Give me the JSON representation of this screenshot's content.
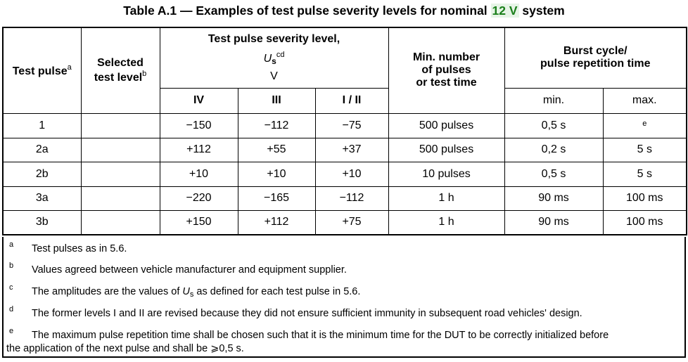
{
  "title": {
    "prefix": "Table A.1 — Examples of test pulse severity levels for nominal ",
    "highlight": "12 V",
    "suffix": " system"
  },
  "header": {
    "test_pulse": "Test pulse",
    "test_pulse_note": "a",
    "selected_line1": "Selected",
    "selected_line2": "test level",
    "selected_note": "b",
    "severity_line1": "Test pulse severity level,",
    "severity_symbol": "U",
    "severity_sub": "s",
    "severity_note": "cd",
    "severity_unit": "V",
    "level_iv": "IV",
    "level_iii": "III",
    "level_i_ii": "I / II",
    "min_line1": "Min. number",
    "min_line2": "of pulses",
    "min_line3": "or test time",
    "burst_line1": "Burst cycle/",
    "burst_line2": "pulse repetition time",
    "burst_min": "min.",
    "burst_max": "max."
  },
  "rows": [
    {
      "pulse": "1",
      "selected": "",
      "iv": "−150",
      "iii": "−112",
      "i_ii": "−75",
      "min": "500 pulses",
      "bmin": "0,5 s",
      "bmax": "e"
    },
    {
      "pulse": "2a",
      "selected": "",
      "iv": "+112",
      "iii": "+55",
      "i_ii": "+37",
      "min": "500 pulses",
      "bmin": "0,2 s",
      "bmax": "5 s"
    },
    {
      "pulse": "2b",
      "selected": "",
      "iv": "+10",
      "iii": "+10",
      "i_ii": "+10",
      "min": "10 pulses",
      "bmin": "0,5 s",
      "bmax": "5 s"
    },
    {
      "pulse": "3a",
      "selected": "",
      "iv": "−220",
      "iii": "−165",
      "i_ii": "−112",
      "min": "1 h",
      "bmin": "90 ms",
      "bmax": "100 ms"
    },
    {
      "pulse": "3b",
      "selected": "",
      "iv": "+150",
      "iii": "+112",
      "i_ii": "+75",
      "min": "1 h",
      "bmin": "90 ms",
      "bmax": "100 ms"
    }
  ],
  "notes": [
    {
      "mark": "a",
      "text": "Test pulses as in 5.6."
    },
    {
      "mark": "b",
      "text": "Values agreed between vehicle manufacturer and equipment supplier."
    },
    {
      "mark": "c",
      "pre": "The amplitudes are the values of ",
      "sym": "U",
      "sub": "s",
      "post": " as defined for each test pulse in 5.6."
    },
    {
      "mark": "d",
      "text": "The former levels I and II are revised because they did not ensure sufficient immunity in subsequent road vehicles' design."
    },
    {
      "mark": "e",
      "line1": "The maximum pulse repetition time shall be chosen such that it is the minimum time for the DUT to be correctly initialized before",
      "line2": "the application of the next pulse and shall be ⩾0,5 s."
    }
  ]
}
